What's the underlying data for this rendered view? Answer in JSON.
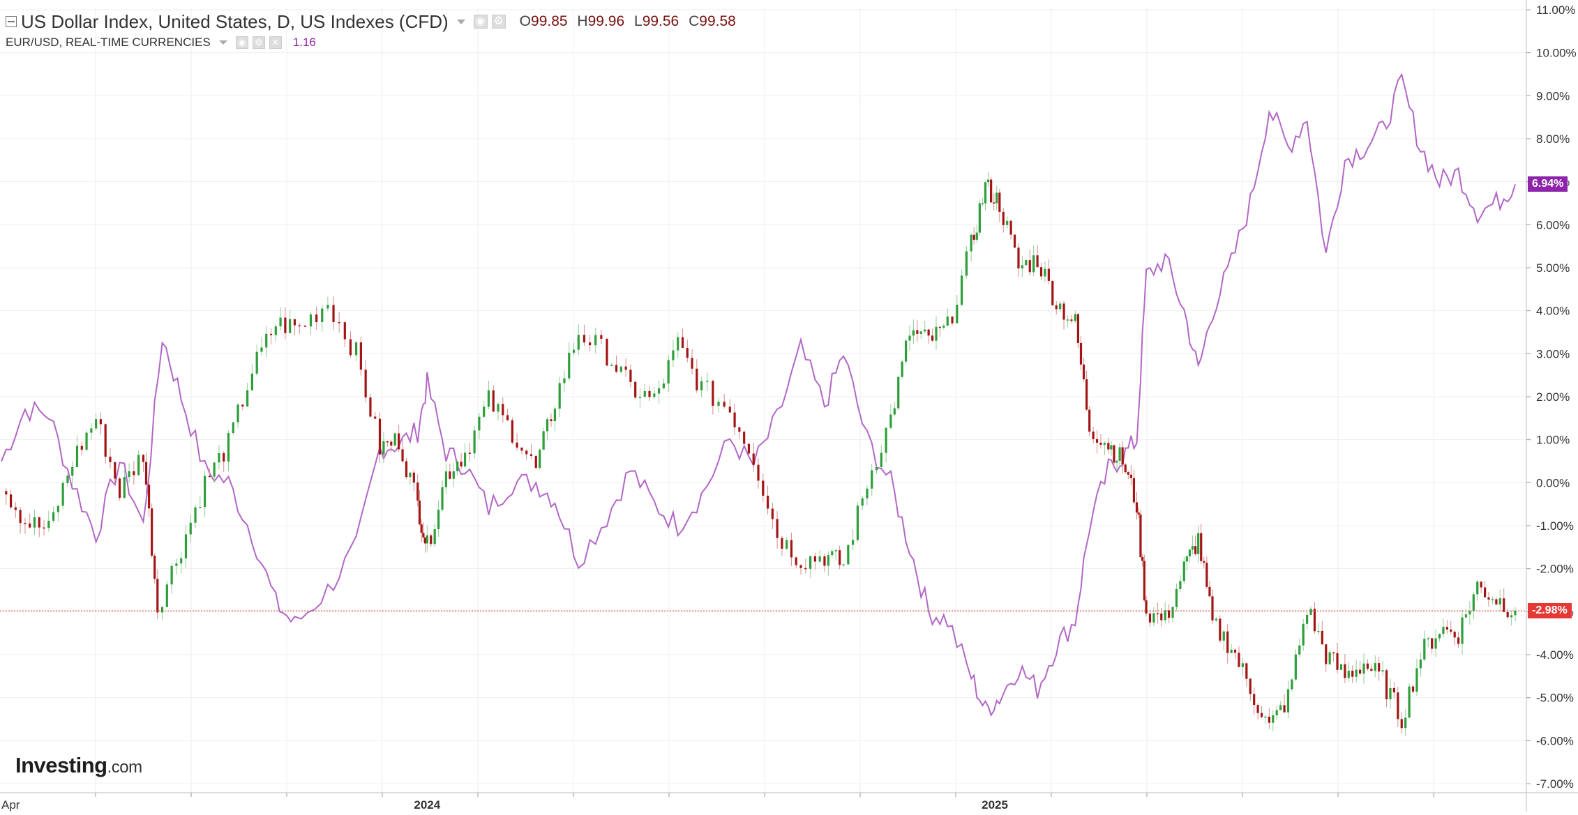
{
  "header": {
    "main_symbol": "US Dollar Index, United States, D, US Indexes (CFD)",
    "ohlc": [
      {
        "label": "O",
        "value": "99.85"
      },
      {
        "label": "H",
        "value": "99.96"
      },
      {
        "label": "L",
        "value": "99.56"
      },
      {
        "label": "C",
        "value": "99.58"
      }
    ],
    "compare_symbol": "EUR/USD, REAL-TIME CURRENCIES",
    "compare_price": "1.16",
    "icons": [
      "collapse-icon",
      "eye-icon",
      "gear-icon",
      "close-icon",
      "dropdown-caret-icon"
    ]
  },
  "logo": {
    "brand": "Investing",
    "suffix": ".com"
  },
  "colors": {
    "up_candle": "#2e9e3a",
    "down_candle": "#a31515",
    "compare_line": "#b267c6",
    "compare_tag": "#8e24aa",
    "last_price_line": "#e53935",
    "grid": "#efefef",
    "axis_text": "#333333"
  },
  "chart_data": {
    "type": "line",
    "y_axis": {
      "unit": "%",
      "ylim": [
        -7,
        11
      ],
      "tick_labels": [
        "11.00%",
        "10.00%",
        "9.00%",
        "8.00%",
        "7.00%",
        "6.00%",
        "5.00%",
        "4.00%",
        "3.00%",
        "2.00%",
        "1.00%",
        "0.00%",
        "-1.00%",
        "-2.00%",
        "-3.00%",
        "-4.00%",
        "-5.00%",
        "-6.00%",
        "-7.00%"
      ],
      "side": "right"
    },
    "x_axis": {
      "tick_labels": [
        {
          "label": "Apr",
          "x": 0.0
        },
        {
          "label": "2024",
          "x": 9.0
        },
        {
          "label": "2025",
          "x": 21.0
        }
      ],
      "xlim": [
        0,
        32
      ]
    },
    "grid": true,
    "series": [
      {
        "name": "US Dollar Index, United States, D, US Indexes (CFD)",
        "style": "candlestick",
        "last_value_label": "-2.98%",
        "points": [
          {
            "x": 0,
            "y": 0.0
          },
          {
            "x": 0.5,
            "y": -0.9
          },
          {
            "x": 1.0,
            "y": -1.1
          },
          {
            "x": 1.5,
            "y": 0.5
          },
          {
            "x": 2.0,
            "y": 1.5
          },
          {
            "x": 2.5,
            "y": -0.2
          },
          {
            "x": 3.0,
            "y": 0.7
          },
          {
            "x": 3.3,
            "y": -2.9
          },
          {
            "x": 3.8,
            "y": -1.5
          },
          {
            "x": 4.3,
            "y": 0.0
          },
          {
            "x": 4.8,
            "y": 0.9
          },
          {
            "x": 5.3,
            "y": 2.6
          },
          {
            "x": 5.8,
            "y": 3.7
          },
          {
            "x": 6.3,
            "y": 3.6
          },
          {
            "x": 6.9,
            "y": 4.2
          },
          {
            "x": 7.5,
            "y": 3.0
          },
          {
            "x": 8.0,
            "y": 0.8
          },
          {
            "x": 8.4,
            "y": 1.0
          },
          {
            "x": 8.8,
            "y": -0.5
          },
          {
            "x": 9.0,
            "y": -1.5
          },
          {
            "x": 9.4,
            "y": 0.2
          },
          {
            "x": 9.8,
            "y": 0.7
          },
          {
            "x": 10.3,
            "y": 1.9
          },
          {
            "x": 10.8,
            "y": 1.2
          },
          {
            "x": 11.3,
            "y": 0.3
          },
          {
            "x": 11.7,
            "y": 1.9
          },
          {
            "x": 12.2,
            "y": 3.5
          },
          {
            "x": 12.8,
            "y": 3.0
          },
          {
            "x": 13.3,
            "y": 2.2
          },
          {
            "x": 13.8,
            "y": 1.9
          },
          {
            "x": 14.3,
            "y": 3.2
          },
          {
            "x": 14.8,
            "y": 2.2
          },
          {
            "x": 15.4,
            "y": 1.7
          },
          {
            "x": 15.9,
            "y": 0.6
          },
          {
            "x": 16.4,
            "y": -1.2
          },
          {
            "x": 16.9,
            "y": -1.8
          },
          {
            "x": 17.4,
            "y": -1.7
          },
          {
            "x": 17.8,
            "y": -1.9
          },
          {
            "x": 18.3,
            "y": 0.0
          },
          {
            "x": 18.8,
            "y": 1.5
          },
          {
            "x": 19.2,
            "y": 3.5
          },
          {
            "x": 19.6,
            "y": 3.3
          },
          {
            "x": 20.0,
            "y": 3.6
          },
          {
            "x": 20.5,
            "y": 5.5
          },
          {
            "x": 20.8,
            "y": 6.9
          },
          {
            "x": 21.1,
            "y": 6.5
          },
          {
            "x": 21.5,
            "y": 5.0
          },
          {
            "x": 21.9,
            "y": 5.2
          },
          {
            "x": 22.3,
            "y": 4.2
          },
          {
            "x": 22.7,
            "y": 3.7
          },
          {
            "x": 23.0,
            "y": 1.3
          },
          {
            "x": 23.4,
            "y": 0.9
          },
          {
            "x": 23.7,
            "y": 0.5
          },
          {
            "x": 24.0,
            "y": -0.5
          },
          {
            "x": 24.2,
            "y": -3.0
          },
          {
            "x": 24.6,
            "y": -3.2
          },
          {
            "x": 25.0,
            "y": -2.0
          },
          {
            "x": 25.3,
            "y": -1.3
          },
          {
            "x": 25.6,
            "y": -3.3
          },
          {
            "x": 26.0,
            "y": -3.8
          },
          {
            "x": 26.4,
            "y": -4.8
          },
          {
            "x": 26.8,
            "y": -5.7
          },
          {
            "x": 27.2,
            "y": -5.0
          },
          {
            "x": 27.6,
            "y": -2.9
          },
          {
            "x": 28.0,
            "y": -4.0
          },
          {
            "x": 28.4,
            "y": -4.5
          },
          {
            "x": 28.8,
            "y": -4.2
          },
          {
            "x": 29.2,
            "y": -4.6
          },
          {
            "x": 29.6,
            "y": -5.5
          },
          {
            "x": 30.0,
            "y": -4.0
          },
          {
            "x": 30.4,
            "y": -3.4
          },
          {
            "x": 30.8,
            "y": -3.5
          },
          {
            "x": 31.2,
            "y": -2.4
          },
          {
            "x": 31.6,
            "y": -2.7
          },
          {
            "x": 32.0,
            "y": -2.98
          }
        ]
      },
      {
        "name": "EUR/USD, REAL-TIME CURRENCIES",
        "style": "line",
        "last_value_label": "6.94%",
        "points": [
          {
            "x": 0,
            "y": 0.5
          },
          {
            "x": 0.5,
            "y": 1.7
          },
          {
            "x": 1.0,
            "y": 1.6
          },
          {
            "x": 1.5,
            "y": 0.0
          },
          {
            "x": 2.0,
            "y": -1.2
          },
          {
            "x": 2.5,
            "y": 0.5
          },
          {
            "x": 3.0,
            "y": -1.0
          },
          {
            "x": 3.4,
            "y": 3.4
          },
          {
            "x": 3.8,
            "y": 2.0
          },
          {
            "x": 4.3,
            "y": 0.3
          },
          {
            "x": 4.8,
            "y": 0.0
          },
          {
            "x": 5.3,
            "y": -1.2
          },
          {
            "x": 5.8,
            "y": -2.8
          },
          {
            "x": 6.2,
            "y": -3.3
          },
          {
            "x": 6.9,
            "y": -2.5
          },
          {
            "x": 7.5,
            "y": -1.5
          },
          {
            "x": 8.0,
            "y": 0.8
          },
          {
            "x": 8.4,
            "y": 0.9
          },
          {
            "x": 8.8,
            "y": 1.2
          },
          {
            "x": 9.0,
            "y": 2.3
          },
          {
            "x": 9.4,
            "y": 0.7
          },
          {
            "x": 9.8,
            "y": 0.4
          },
          {
            "x": 10.3,
            "y": -0.6
          },
          {
            "x": 10.8,
            "y": 0.0
          },
          {
            "x": 11.3,
            "y": 0.0
          },
          {
            "x": 11.7,
            "y": -0.4
          },
          {
            "x": 12.2,
            "y": -1.8
          },
          {
            "x": 12.8,
            "y": -0.8
          },
          {
            "x": 13.3,
            "y": 0.3
          },
          {
            "x": 13.8,
            "y": -0.5
          },
          {
            "x": 14.3,
            "y": -1.0
          },
          {
            "x": 14.8,
            "y": -0.3
          },
          {
            "x": 15.4,
            "y": 1.0
          },
          {
            "x": 15.9,
            "y": 0.4
          },
          {
            "x": 16.4,
            "y": 1.5
          },
          {
            "x": 16.9,
            "y": 3.1
          },
          {
            "x": 17.4,
            "y": 1.8
          },
          {
            "x": 17.8,
            "y": 3.0
          },
          {
            "x": 18.3,
            "y": 1.0
          },
          {
            "x": 18.8,
            "y": 0.0
          },
          {
            "x": 19.2,
            "y": -1.5
          },
          {
            "x": 19.6,
            "y": -3.0
          },
          {
            "x": 20.0,
            "y": -3.2
          },
          {
            "x": 20.5,
            "y": -4.5
          },
          {
            "x": 20.8,
            "y": -5.3
          },
          {
            "x": 21.1,
            "y": -5.0
          },
          {
            "x": 21.5,
            "y": -4.3
          },
          {
            "x": 21.9,
            "y": -4.8
          },
          {
            "x": 22.3,
            "y": -3.8
          },
          {
            "x": 22.7,
            "y": -3.2
          },
          {
            "x": 23.0,
            "y": -1.0
          },
          {
            "x": 23.4,
            "y": 0.3
          },
          {
            "x": 23.7,
            "y": 0.6
          },
          {
            "x": 24.0,
            "y": 1.0
          },
          {
            "x": 24.2,
            "y": 4.8
          },
          {
            "x": 24.6,
            "y": 5.2
          },
          {
            "x": 25.0,
            "y": 4.0
          },
          {
            "x": 25.3,
            "y": 2.6
          },
          {
            "x": 25.6,
            "y": 4.0
          },
          {
            "x": 26.0,
            "y": 5.1
          },
          {
            "x": 26.4,
            "y": 6.5
          },
          {
            "x": 26.8,
            "y": 8.7
          },
          {
            "x": 27.2,
            "y": 7.8
          },
          {
            "x": 27.6,
            "y": 8.5
          },
          {
            "x": 28.0,
            "y": 5.3
          },
          {
            "x": 28.4,
            "y": 7.5
          },
          {
            "x": 28.8,
            "y": 7.8
          },
          {
            "x": 29.2,
            "y": 8.2
          },
          {
            "x": 29.6,
            "y": 9.3
          },
          {
            "x": 30.0,
            "y": 7.8
          },
          {
            "x": 30.4,
            "y": 7.0
          },
          {
            "x": 30.8,
            "y": 7.2
          },
          {
            "x": 31.2,
            "y": 6.3
          },
          {
            "x": 31.6,
            "y": 6.5
          },
          {
            "x": 32.0,
            "y": 6.94
          }
        ]
      }
    ]
  }
}
